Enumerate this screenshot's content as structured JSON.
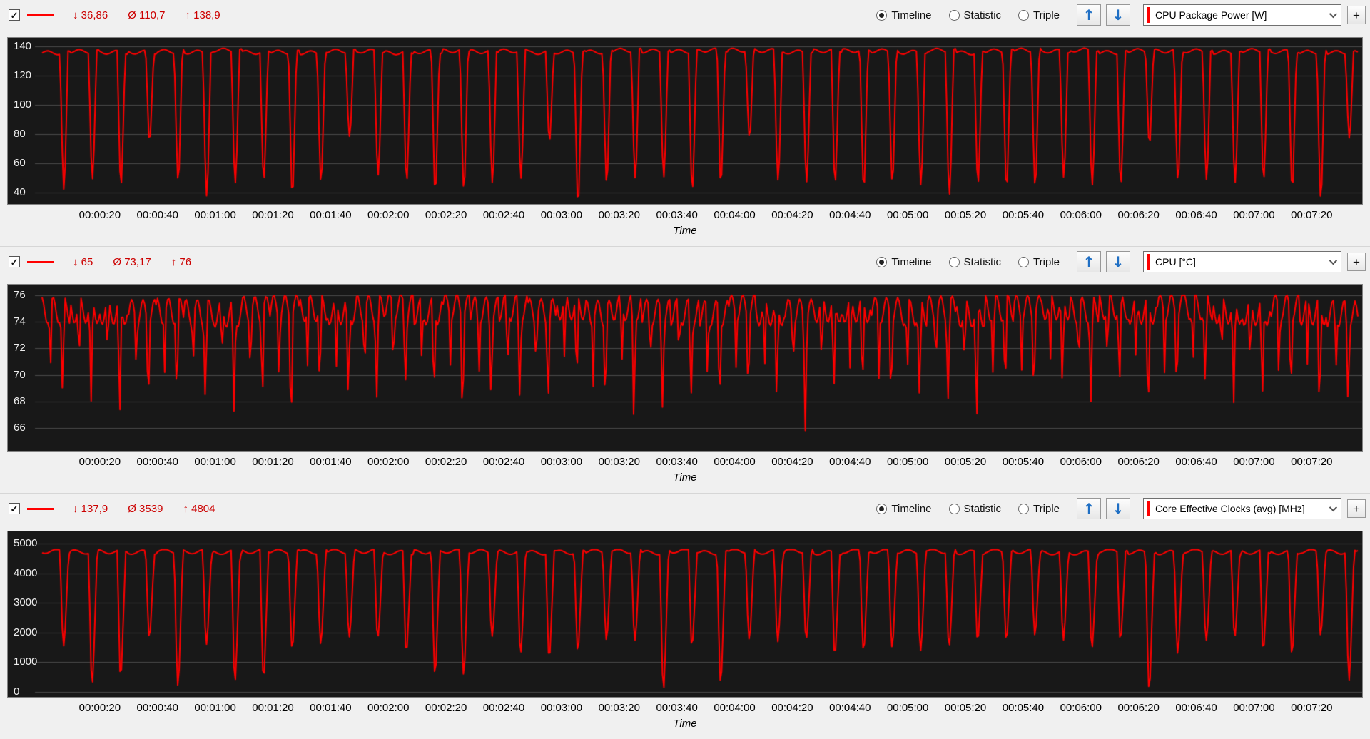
{
  "controls": {
    "timeline": "Timeline",
    "statistic": "Statistic",
    "triple": "Triple",
    "plus": "+",
    "check": "✓",
    "up_arrow": "↑",
    "down_arrow": "↓"
  },
  "colors": {
    "accent_red": "#ff0000",
    "stat_text": "#cc0000",
    "chart_bg": "#181818",
    "grid": "#4a4a4a",
    "panel_bg": "#f0f0f0",
    "arrow_blue": "#1f6fc4"
  },
  "panels": [
    {
      "sensor": "CPU Package Power [W]",
      "checked": true,
      "selected_view": "Timeline",
      "stats": {
        "min": "↓ 36,86",
        "avg": "Ø 110,7",
        "max": "↑ 138,9"
      }
    },
    {
      "sensor": "CPU [°C]",
      "checked": true,
      "selected_view": "Timeline",
      "stats": {
        "min": "↓ 65",
        "avg": "Ø 73,17",
        "max": "↑ 76"
      }
    },
    {
      "sensor": "Core Effective Clocks (avg) [MHz]",
      "checked": true,
      "selected_view": "Timeline",
      "stats": {
        "min": "↓ 137,9",
        "avg": "Ø 3539",
        "max": "↑ 4804"
      }
    }
  ],
  "chart_data": [
    {
      "type": "line",
      "title": "CPU Package Power [W]",
      "color": "#ff0000",
      "xlabel": "Time",
      "legend_position": "header",
      "grid": true,
      "x_range_seconds": [
        0,
        456
      ],
      "x_ticks_seconds": [
        20,
        40,
        60,
        80,
        100,
        120,
        140,
        160,
        180,
        200,
        220,
        240,
        260,
        280,
        300,
        320,
        340,
        360,
        380,
        400,
        420,
        440
      ],
      "x_tick_labels": [
        "00:00:20",
        "00:00:40",
        "00:01:00",
        "00:01:20",
        "00:01:40",
        "00:02:00",
        "00:02:20",
        "00:02:40",
        "00:03:00",
        "00:03:20",
        "00:03:40",
        "00:04:00",
        "00:04:20",
        "00:04:40",
        "00:05:00",
        "00:05:20",
        "00:05:40",
        "00:06:00",
        "00:06:20",
        "00:06:40",
        "00:07:00",
        "00:07:20"
      ],
      "y_ticks": [
        40,
        60,
        80,
        100,
        120,
        140
      ],
      "ylim": [
        32,
        146
      ],
      "stats": {
        "min": 36.86,
        "avg": 110.7,
        "max": 138.9
      },
      "waveform": {
        "kind": "power",
        "period": 9.9,
        "seed": 7,
        "hi": 136.6,
        "hiAmp": 1.3,
        "hiNoise": 2,
        "loBase": 42,
        "loVar": 9,
        "altLo": 75,
        "altEvery": 7,
        "deepLo": 37,
        "clamp": [
          36.9,
          138.9
        ]
      }
    },
    {
      "type": "line",
      "title": "CPU [°C]",
      "color": "#ff0000",
      "xlabel": "Time",
      "legend_position": "header",
      "grid": true,
      "x_range_seconds": [
        0,
        456
      ],
      "x_ticks_seconds": [
        20,
        40,
        60,
        80,
        100,
        120,
        140,
        160,
        180,
        200,
        220,
        240,
        260,
        280,
        300,
        320,
        340,
        360,
        380,
        400,
        420,
        440
      ],
      "x_tick_labels": [
        "00:00:20",
        "00:00:40",
        "00:01:00",
        "00:01:20",
        "00:01:40",
        "00:02:00",
        "00:02:20",
        "00:02:40",
        "00:03:00",
        "00:03:20",
        "00:03:40",
        "00:04:00",
        "00:04:20",
        "00:04:40",
        "00:05:00",
        "00:05:20",
        "00:05:40",
        "00:06:00",
        "00:06:20",
        "00:06:40",
        "00:07:00",
        "00:07:20"
      ],
      "y_ticks": [
        66,
        68,
        70,
        72,
        74,
        76
      ],
      "ylim": [
        64.3,
        76.8
      ],
      "stats": {
        "min": 65,
        "avg": 73.17,
        "max": 76
      },
      "waveform": {
        "kind": "temp",
        "period": 9.9,
        "seed": 21,
        "hi": 74.9,
        "hiAmp": 1.0,
        "dip1": 70.0,
        "dip2": 67.2,
        "deepDip": 65.2,
        "deepEvery": 6,
        "clamp": [
          65,
          76
        ]
      }
    },
    {
      "type": "line",
      "title": "Core Effective Clocks (avg) [MHz]",
      "color": "#ff0000",
      "xlabel": "Time",
      "legend_position": "header",
      "grid": true,
      "x_range_seconds": [
        0,
        456
      ],
      "x_ticks_seconds": [
        20,
        40,
        60,
        80,
        100,
        120,
        140,
        160,
        180,
        200,
        220,
        240,
        260,
        280,
        300,
        320,
        340,
        360,
        380,
        400,
        420,
        440
      ],
      "x_tick_labels": [
        "00:00:20",
        "00:00:40",
        "00:01:00",
        "00:01:20",
        "00:01:40",
        "00:02:00",
        "00:02:20",
        "00:02:40",
        "00:03:00",
        "00:03:20",
        "00:03:40",
        "00:04:00",
        "00:04:20",
        "00:04:40",
        "00:05:00",
        "00:05:20",
        "00:05:40",
        "00:06:00",
        "00:06:20",
        "00:06:40",
        "00:07:00",
        "00:07:20"
      ],
      "y_ticks": [
        0,
        1000,
        2000,
        3000,
        4000,
        5000
      ],
      "ylim": [
        -180,
        5420
      ],
      "stats": {
        "min": 137.9,
        "avg": 3539,
        "max": 4804
      },
      "waveform": {
        "kind": "clock",
        "period": 9.9,
        "seed": 33,
        "hi": 4730,
        "hiAmp": 70,
        "hiNoise": 70,
        "loA": 260,
        "loB": 950,
        "deepLo": 140,
        "clamp": [
          138,
          4804
        ]
      }
    }
  ]
}
